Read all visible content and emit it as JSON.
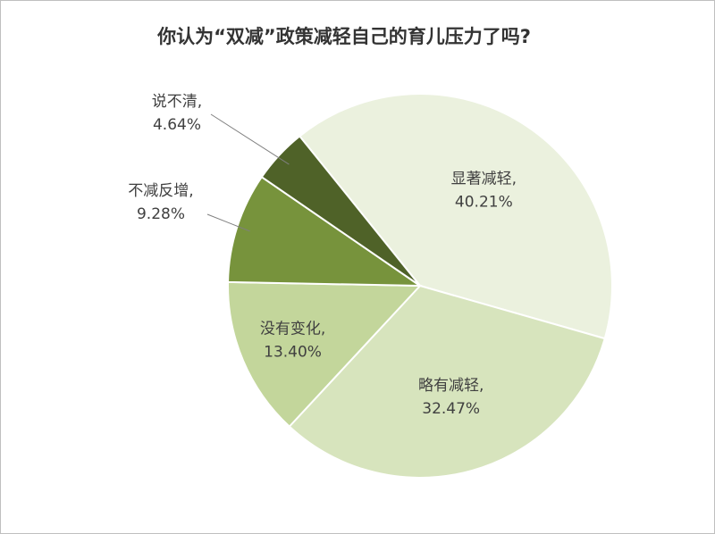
{
  "chart_data": {
    "type": "pie",
    "title": "你认为“双减”政策减轻自己的育儿压力了吗?",
    "categories": [
      "显著减轻,",
      "略有减轻,",
      "没有变化,",
      "不减反增,",
      "说不清,"
    ],
    "values": [
      40.21,
      32.47,
      13.4,
      9.28,
      4.64
    ],
    "value_labels": [
      "40.21%",
      "32.47%",
      "13.40%",
      "9.28%",
      "4.64%"
    ],
    "colors": [
      "#ebf1de",
      "#d7e4bd",
      "#c3d69b",
      "#77933c",
      "#4f6228"
    ]
  }
}
